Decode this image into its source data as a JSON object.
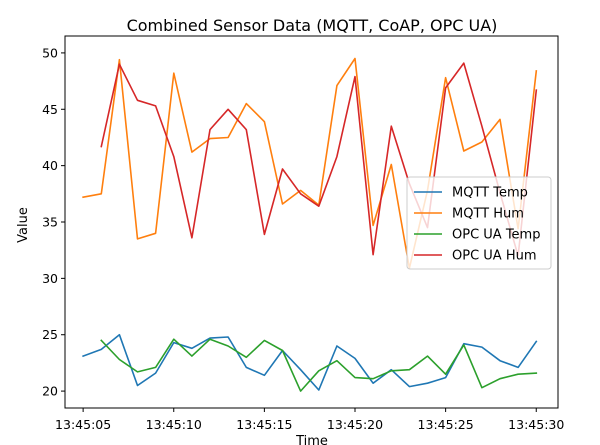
{
  "chart_data": {
    "type": "line",
    "title": "Combined Sensor Data (MQTT, CoAP, OPC UA)",
    "xlabel": "Time",
    "ylabel": "Value",
    "xlim": [
      "13:45:04.0",
      "13:45:31.2"
    ],
    "ylim": [
      18.5,
      51.5
    ],
    "x_ticks": [
      "13:45:05",
      "13:45:10",
      "13:45:15",
      "13:45:20",
      "13:45:25",
      "13:45:30"
    ],
    "y_ticks": [
      20,
      25,
      30,
      35,
      40,
      45,
      50
    ],
    "grid": false,
    "legend_position": "center-right",
    "series": [
      {
        "name": "MQTT Temp",
        "color": "#1f77b4",
        "x": [
          "13:45:05",
          "13:45:06",
          "13:45:07",
          "13:45:08",
          "13:45:09",
          "13:45:10",
          "13:45:11",
          "13:45:12",
          "13:45:13",
          "13:45:14",
          "13:45:15",
          "13:45:16",
          "13:45:17",
          "13:45:18",
          "13:45:19",
          "13:45:20",
          "13:45:21",
          "13:45:22",
          "13:45:23",
          "13:45:24",
          "13:45:25",
          "13:45:26",
          "13:45:27",
          "13:45:28",
          "13:45:29",
          "13:45:30"
        ],
        "values": [
          23.1,
          23.7,
          25.0,
          20.5,
          21.6,
          24.3,
          23.8,
          24.7,
          24.8,
          22.1,
          21.4,
          23.6,
          21.9,
          20.1,
          24.0,
          22.9,
          20.7,
          21.9,
          20.4,
          20.7,
          21.2,
          24.2,
          23.9,
          22.7,
          22.1,
          24.4
        ]
      },
      {
        "name": "MQTT Hum",
        "color": "#ff7f0e",
        "x": [
          "13:45:05",
          "13:45:06",
          "13:45:07",
          "13:45:08",
          "13:45:09",
          "13:45:10",
          "13:45:11",
          "13:45:12",
          "13:45:13",
          "13:45:14",
          "13:45:15",
          "13:45:16",
          "13:45:17",
          "13:45:18",
          "13:45:19",
          "13:45:20",
          "13:45:21",
          "13:45:22",
          "13:45:23",
          "13:45:24",
          "13:45:25",
          "13:45:26",
          "13:45:27",
          "13:45:28",
          "13:45:29",
          "13:45:30"
        ],
        "values": [
          37.2,
          37.5,
          49.4,
          33.5,
          34.0,
          48.2,
          41.2,
          42.4,
          42.5,
          45.5,
          43.9,
          36.6,
          37.8,
          36.5,
          47.1,
          49.5,
          34.7,
          40.1,
          30.9,
          37.8,
          47.8,
          41.3,
          42.1,
          44.1,
          34.4,
          48.4
        ]
      },
      {
        "name": "OPC UA Temp",
        "color": "#2ca02c",
        "x": [
          "13:45:06",
          "13:45:07",
          "13:45:08",
          "13:45:09",
          "13:45:10",
          "13:45:11",
          "13:45:12",
          "13:45:13",
          "13:45:14",
          "13:45:15",
          "13:45:16",
          "13:45:17",
          "13:45:18",
          "13:45:19",
          "13:45:20",
          "13:45:21",
          "13:45:22",
          "13:45:23",
          "13:45:24",
          "13:45:25",
          "13:45:26",
          "13:45:27",
          "13:45:28",
          "13:45:29",
          "13:45:30"
        ],
        "values": [
          24.5,
          22.8,
          21.7,
          22.1,
          24.6,
          23.1,
          24.6,
          24.0,
          23.0,
          24.5,
          23.6,
          20.0,
          21.8,
          22.7,
          21.2,
          21.1,
          21.8,
          21.9,
          23.1,
          21.5,
          24.1,
          20.3,
          21.1,
          21.5,
          21.6
        ]
      },
      {
        "name": "OPC UA Hum",
        "color": "#d62728",
        "x": [
          "13:45:06",
          "13:45:07",
          "13:45:08",
          "13:45:09",
          "13:45:10",
          "13:45:11",
          "13:45:12",
          "13:45:13",
          "13:45:14",
          "13:45:15",
          "13:45:16",
          "13:45:17",
          "13:45:18",
          "13:45:19",
          "13:45:20",
          "13:45:21",
          "13:45:22",
          "13:45:23",
          "13:45:24",
          "13:45:25",
          "13:45:26",
          "13:45:27",
          "13:45:28",
          "13:45:29",
          "13:45:30"
        ],
        "values": [
          41.7,
          49.0,
          45.8,
          45.3,
          40.8,
          33.6,
          43.2,
          45.0,
          43.2,
          33.9,
          39.7,
          37.5,
          36.4,
          40.8,
          47.9,
          32.1,
          43.5,
          38.4,
          34.5,
          46.9,
          49.1,
          43.5,
          37.6,
          32.0,
          46.7
        ]
      }
    ]
  }
}
